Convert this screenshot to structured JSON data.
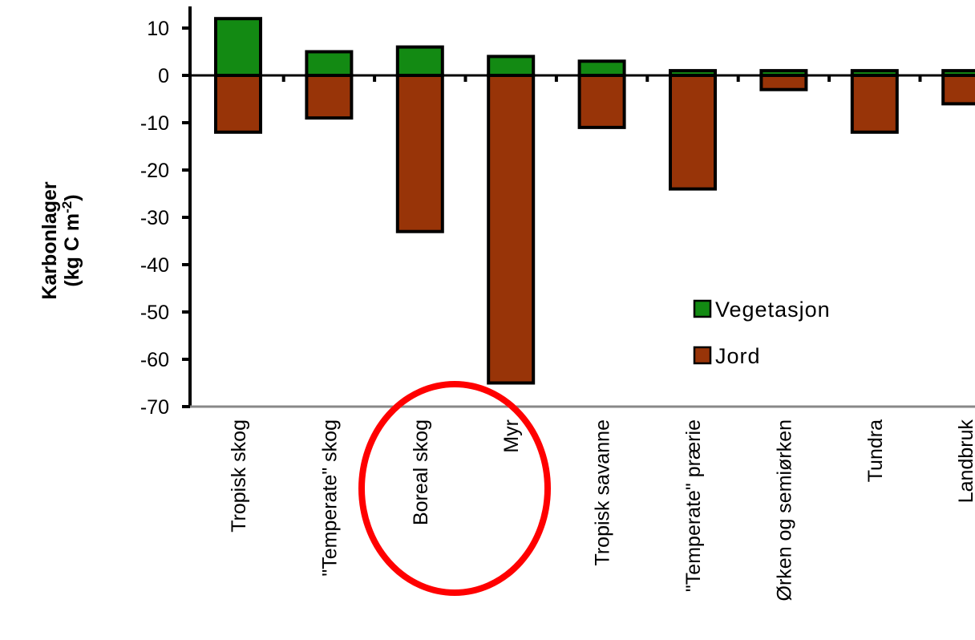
{
  "chart_data": {
    "type": "bar",
    "stacked": true,
    "categories": [
      "Tropisk skog",
      "\"Temperate\" skog",
      "Boreal skog",
      "Myr",
      "Tropisk savanne",
      "\"Temperate\" prærie",
      "Ørken og semiørken",
      "Tundra",
      "Landbruk"
    ],
    "series": [
      {
        "name": "Vegetasjon",
        "color": "#138a13",
        "values": [
          12,
          5,
          6,
          4,
          3,
          1,
          1,
          1,
          1
        ]
      },
      {
        "name": "Jord",
        "color": "#983408",
        "values": [
          -12,
          -9,
          -33,
          -65,
          -11,
          -24,
          -3,
          -12,
          -6
        ]
      }
    ],
    "ylabel_line1": "Karbonlager",
    "ylabel_line2_prefix": "(kg C m",
    "ylabel_superscript": "-2",
    "ylabel_line2_suffix": ")",
    "ylim": [
      -70,
      15
    ],
    "yticks": [
      10,
      0,
      -10,
      -20,
      -30,
      -40,
      -50,
      -60,
      -70
    ],
    "ytick_labels": [
      "10",
      "0",
      "-10",
      "-20",
      "-30",
      "-40",
      "-50",
      "-60",
      "-70"
    ],
    "grid": false,
    "legend_position": "bottom-right",
    "annotation": {
      "type": "ellipse",
      "color": "#ff0000",
      "around": [
        "Boreal skog",
        "Myr"
      ]
    }
  }
}
